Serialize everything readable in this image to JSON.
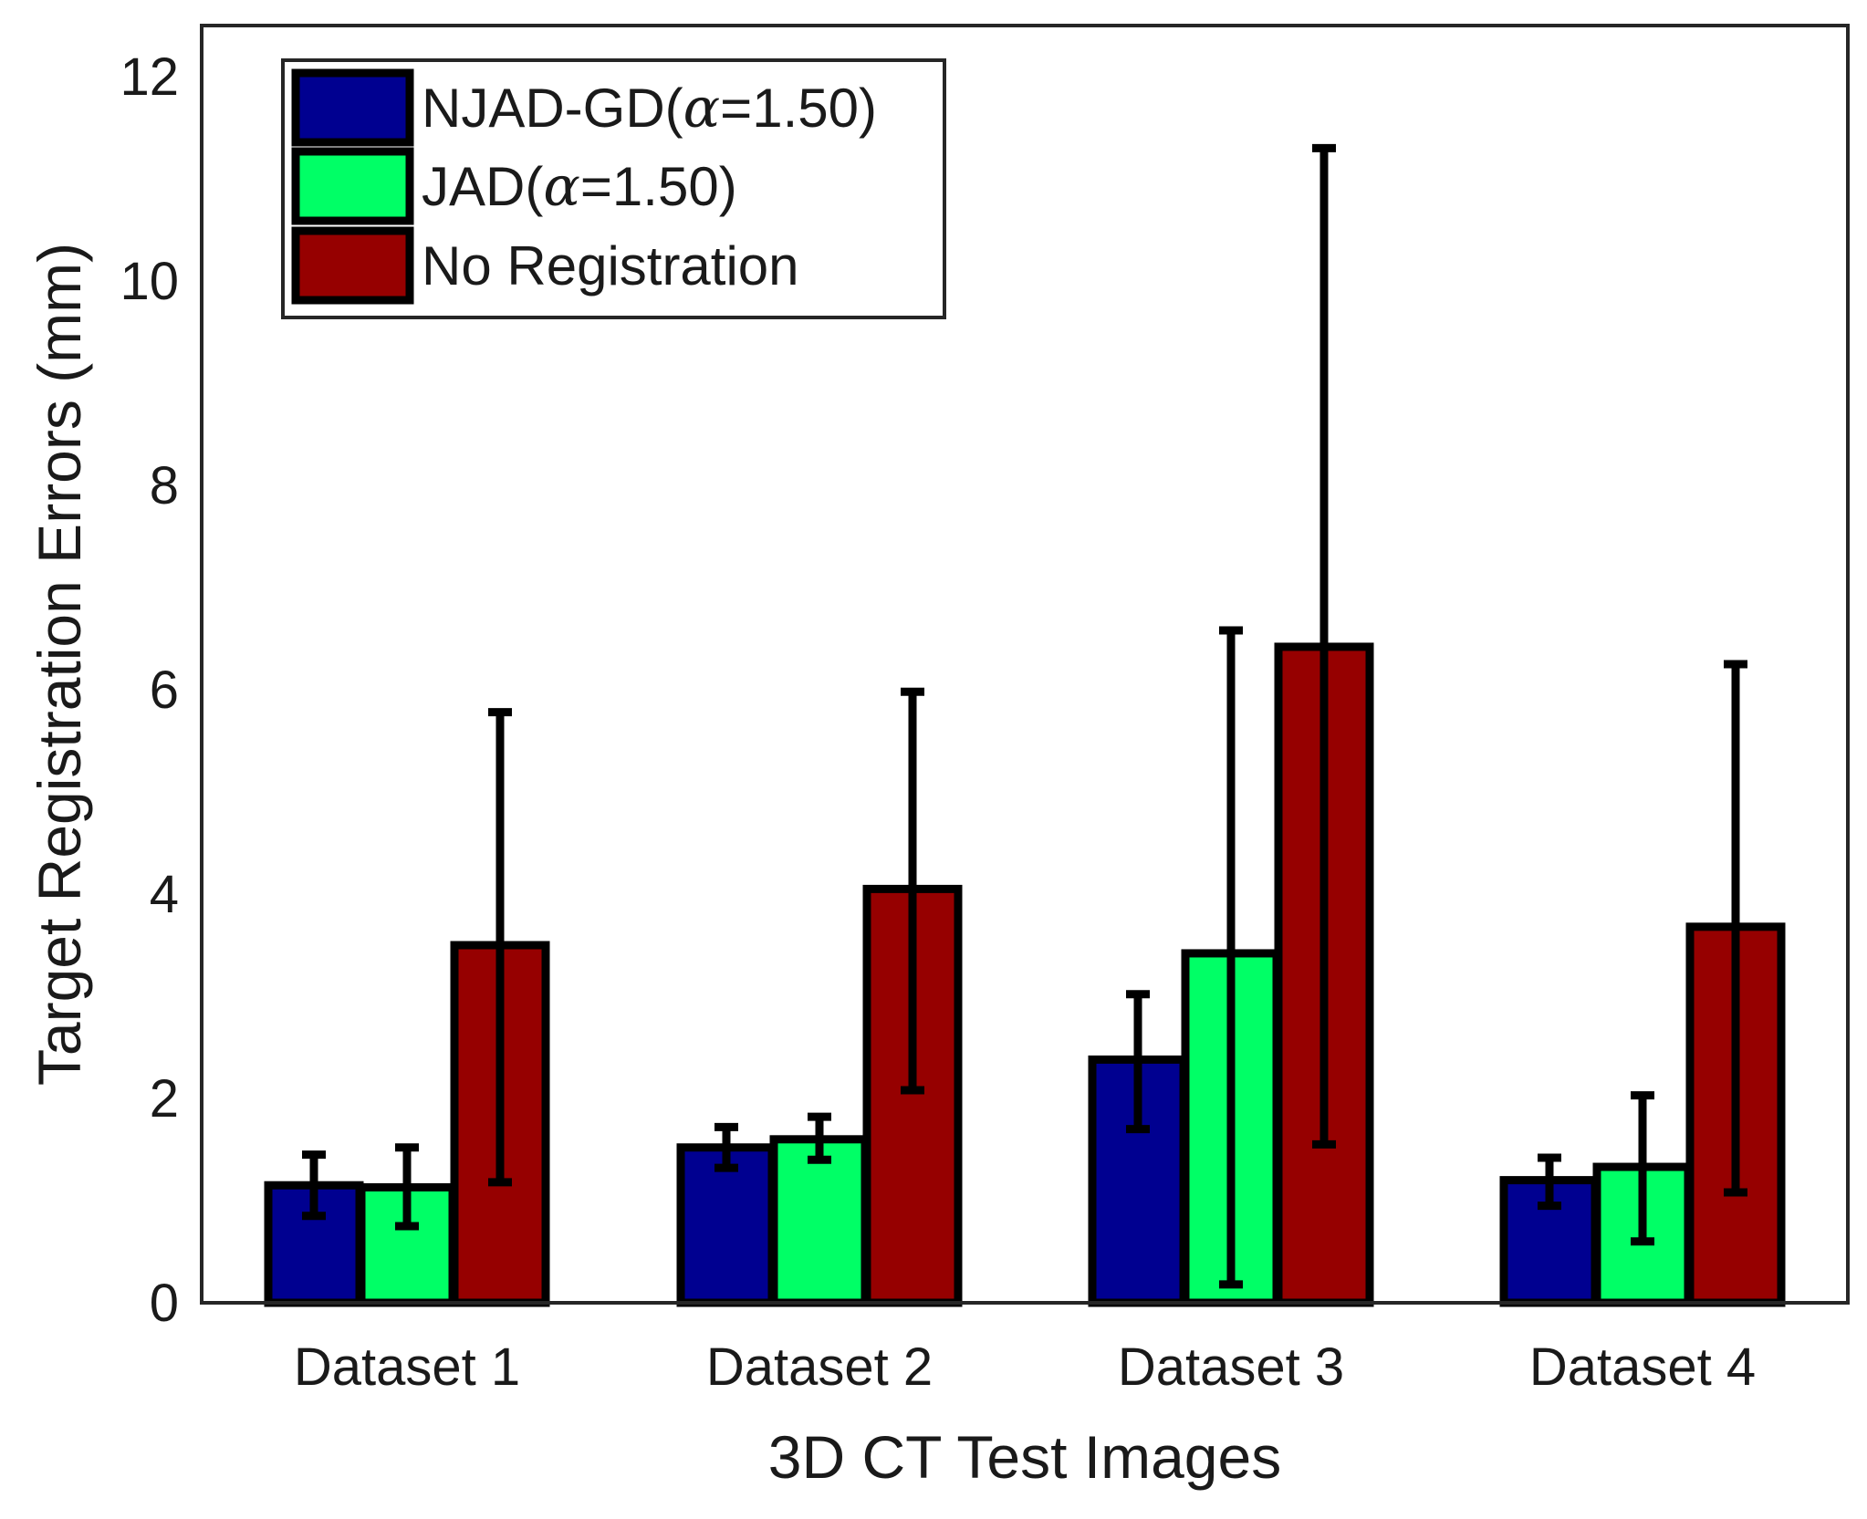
{
  "chart_data": {
    "type": "bar",
    "title": "",
    "xlabel": "3D CT Test Images",
    "ylabel": "Target Registration Errors (mm)",
    "ylim": [
      0,
      12.5
    ],
    "yticks": [
      0,
      2,
      4,
      6,
      8,
      10,
      12
    ],
    "ytick_labels": [
      "0",
      "2",
      "4",
      "6",
      "8",
      "10",
      "12"
    ],
    "categories": [
      "Dataset 1",
      "Dataset 2",
      "Dataset 3",
      "Dataset 4"
    ],
    "grid": false,
    "legend_position": "top-left",
    "series": [
      {
        "name": "NJAD-GD(α=1.50)",
        "label_prefix": "NJAD-GD(",
        "label_greek": "α",
        "label_suffix": "=1.50)",
        "color": "#000090",
        "values": [
          1.15,
          1.52,
          2.38,
          1.2
        ],
        "err_low": [
          0.85,
          1.32,
          1.7,
          0.95
        ],
        "err_high": [
          1.45,
          1.72,
          3.02,
          1.42
        ]
      },
      {
        "name": "JAD(α=1.50)",
        "label_prefix": "JAD(",
        "label_greek": "α",
        "label_suffix": "=1.50)",
        "color": "#00ff66",
        "values": [
          1.13,
          1.6,
          3.42,
          1.33
        ],
        "err_low": [
          0.75,
          1.4,
          0.18,
          0.6
        ],
        "err_high": [
          1.52,
          1.82,
          6.58,
          2.03
        ]
      },
      {
        "name": "No Registration",
        "label_prefix": "No Registration",
        "label_greek": "",
        "label_suffix": "",
        "color": "#960000",
        "values": [
          3.5,
          4.05,
          6.42,
          3.68
        ],
        "err_low": [
          1.18,
          2.08,
          1.55,
          1.08
        ],
        "err_high": [
          5.78,
          5.98,
          11.3,
          6.25
        ]
      }
    ]
  }
}
